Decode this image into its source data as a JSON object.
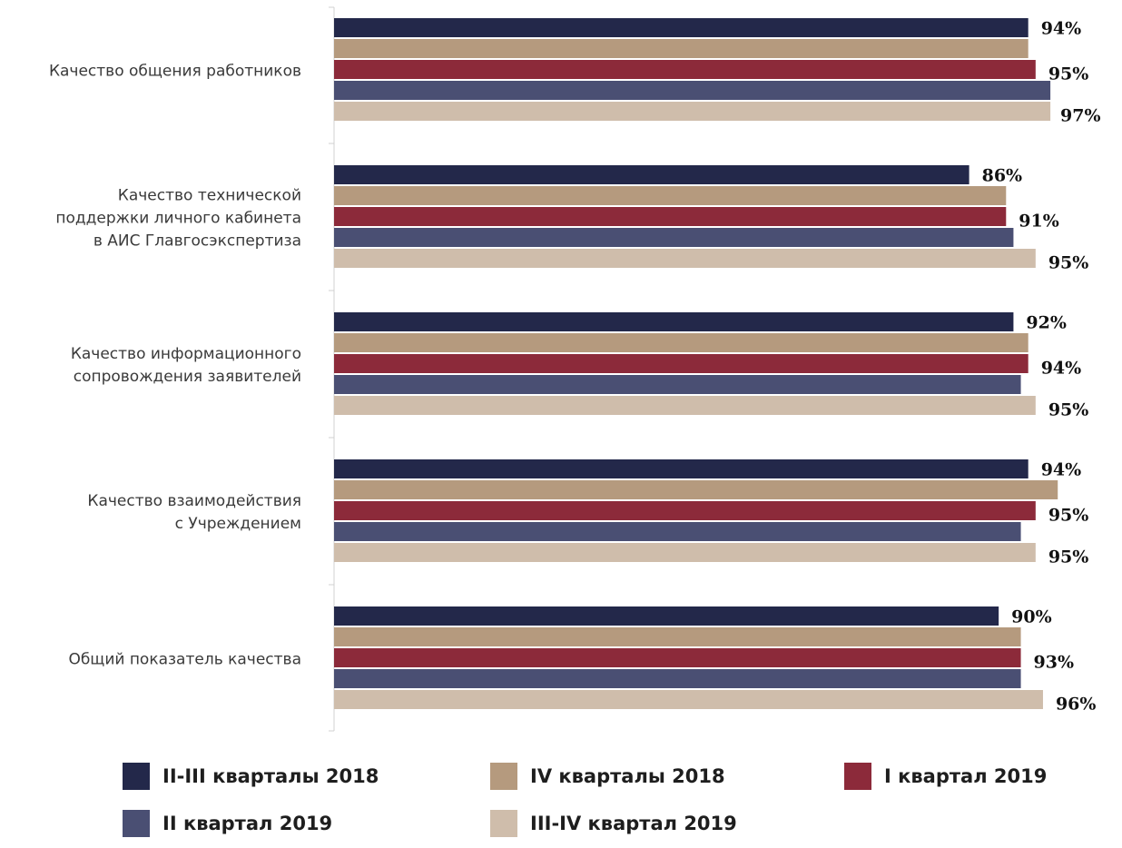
{
  "chart_data": {
    "type": "bar",
    "orientation": "horizontal",
    "categories": [
      "Качество общения работников",
      "Качество технической поддержки личного кабинета в АИС Главгосэкспертиза",
      "Качество информационного сопровождения заявителей",
      "Качество взаимодействия с Учреждением",
      "Общий показатель качества"
    ],
    "category_lines": [
      [
        "Качество общения работников"
      ],
      [
        "Качество технической",
        "поддержки личного кабинета",
        "в АИС Главгосэкспертиза"
      ],
      [
        "Качество информационного",
        "сопровождения заявителей"
      ],
      [
        "Качество взаимодействия",
        "с Учреждением"
      ],
      [
        "Общий показатель качества"
      ]
    ],
    "series": [
      {
        "name": "II-III кварталы 2018",
        "color": "#23284a",
        "values": [
          94,
          86,
          92,
          94,
          90
        ]
      },
      {
        "name": "IV кварталы 2018",
        "color": "#b59a7e",
        "values": [
          94,
          91,
          94,
          98,
          93
        ]
      },
      {
        "name": "I квартал 2019",
        "color": "#8c2a3a",
        "values": [
          95,
          91,
          94,
          95,
          93
        ]
      },
      {
        "name": "II квартал 2019",
        "color": "#4a4f73",
        "values": [
          97,
          92,
          93,
          93,
          93
        ]
      },
      {
        "name": "III-IV квартал 2019",
        "color": "#cfbdab",
        "values": [
          97,
          95,
          95,
          95,
          96
        ]
      }
    ],
    "data_labels": [
      [
        "94%",
        "95%",
        "97%"
      ],
      [
        "86%",
        "91%",
        "95%"
      ],
      [
        "92%",
        "94%",
        "95%"
      ],
      [
        "94%",
        "95%",
        "95%"
      ],
      [
        "90%",
        "93%",
        "96%"
      ]
    ],
    "xlim": [
      0,
      100
    ],
    "grid": false,
    "legend_position": "bottom"
  }
}
